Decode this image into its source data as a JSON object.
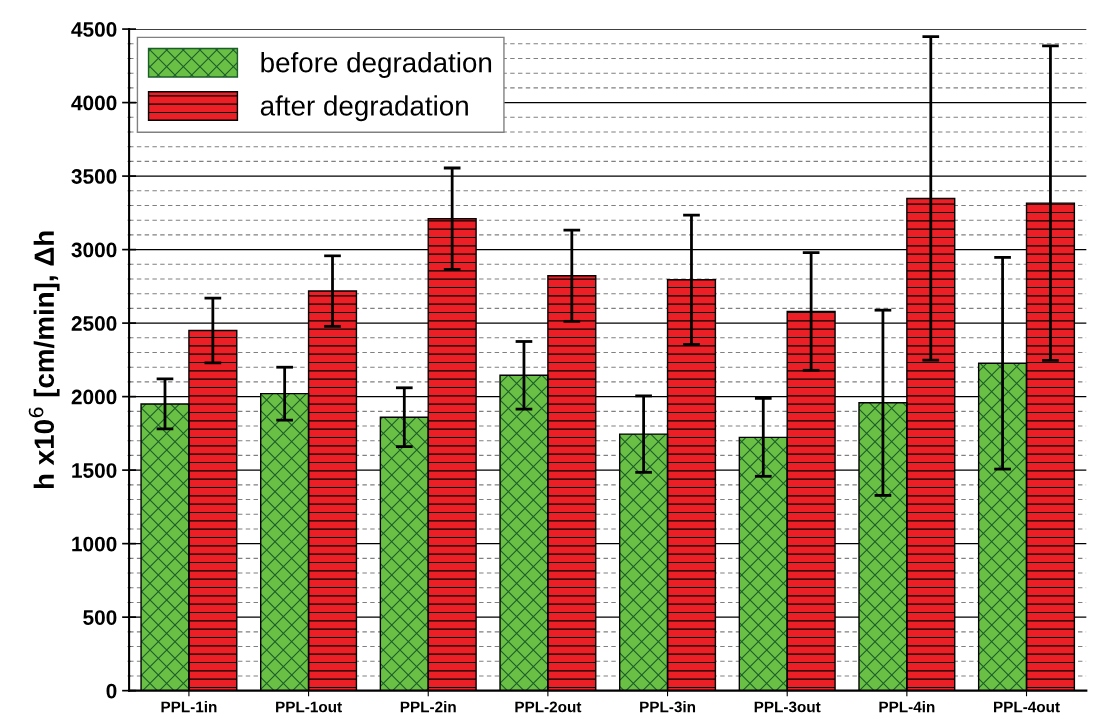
{
  "chart_data": {
    "type": "bar",
    "ylabel": "h x10$^{6}$ [cm/min], Δh",
    "categories": [
      "PPL-1in",
      "PPL-1out",
      "PPL-2in",
      "PPL-2out",
      "PPL-3in",
      "PPL-3out",
      "PPL-4in",
      "PPL-4out"
    ],
    "series": [
      {
        "name": "before degradation",
        "color": "#6abf45",
        "values": [
          1950,
          2020,
          1860,
          2145,
          1745,
          1723,
          1958,
          2227
        ],
        "errors": [
          170,
          180,
          200,
          230,
          260,
          265,
          630,
          720
        ]
      },
      {
        "name": "after degradation",
        "color": "#ec1f26",
        "values": [
          2450,
          2718,
          3210,
          2822,
          2795,
          2579,
          3348,
          3316
        ],
        "errors": [
          220,
          240,
          345,
          310,
          440,
          400,
          1100,
          1070
        ]
      }
    ],
    "ylim": [
      0,
      4500
    ],
    "yticks": [
      0,
      500,
      1000,
      1500,
      2000,
      2500,
      3000,
      3500,
      4000,
      4500
    ],
    "grid": "y",
    "legend": "top left"
  }
}
